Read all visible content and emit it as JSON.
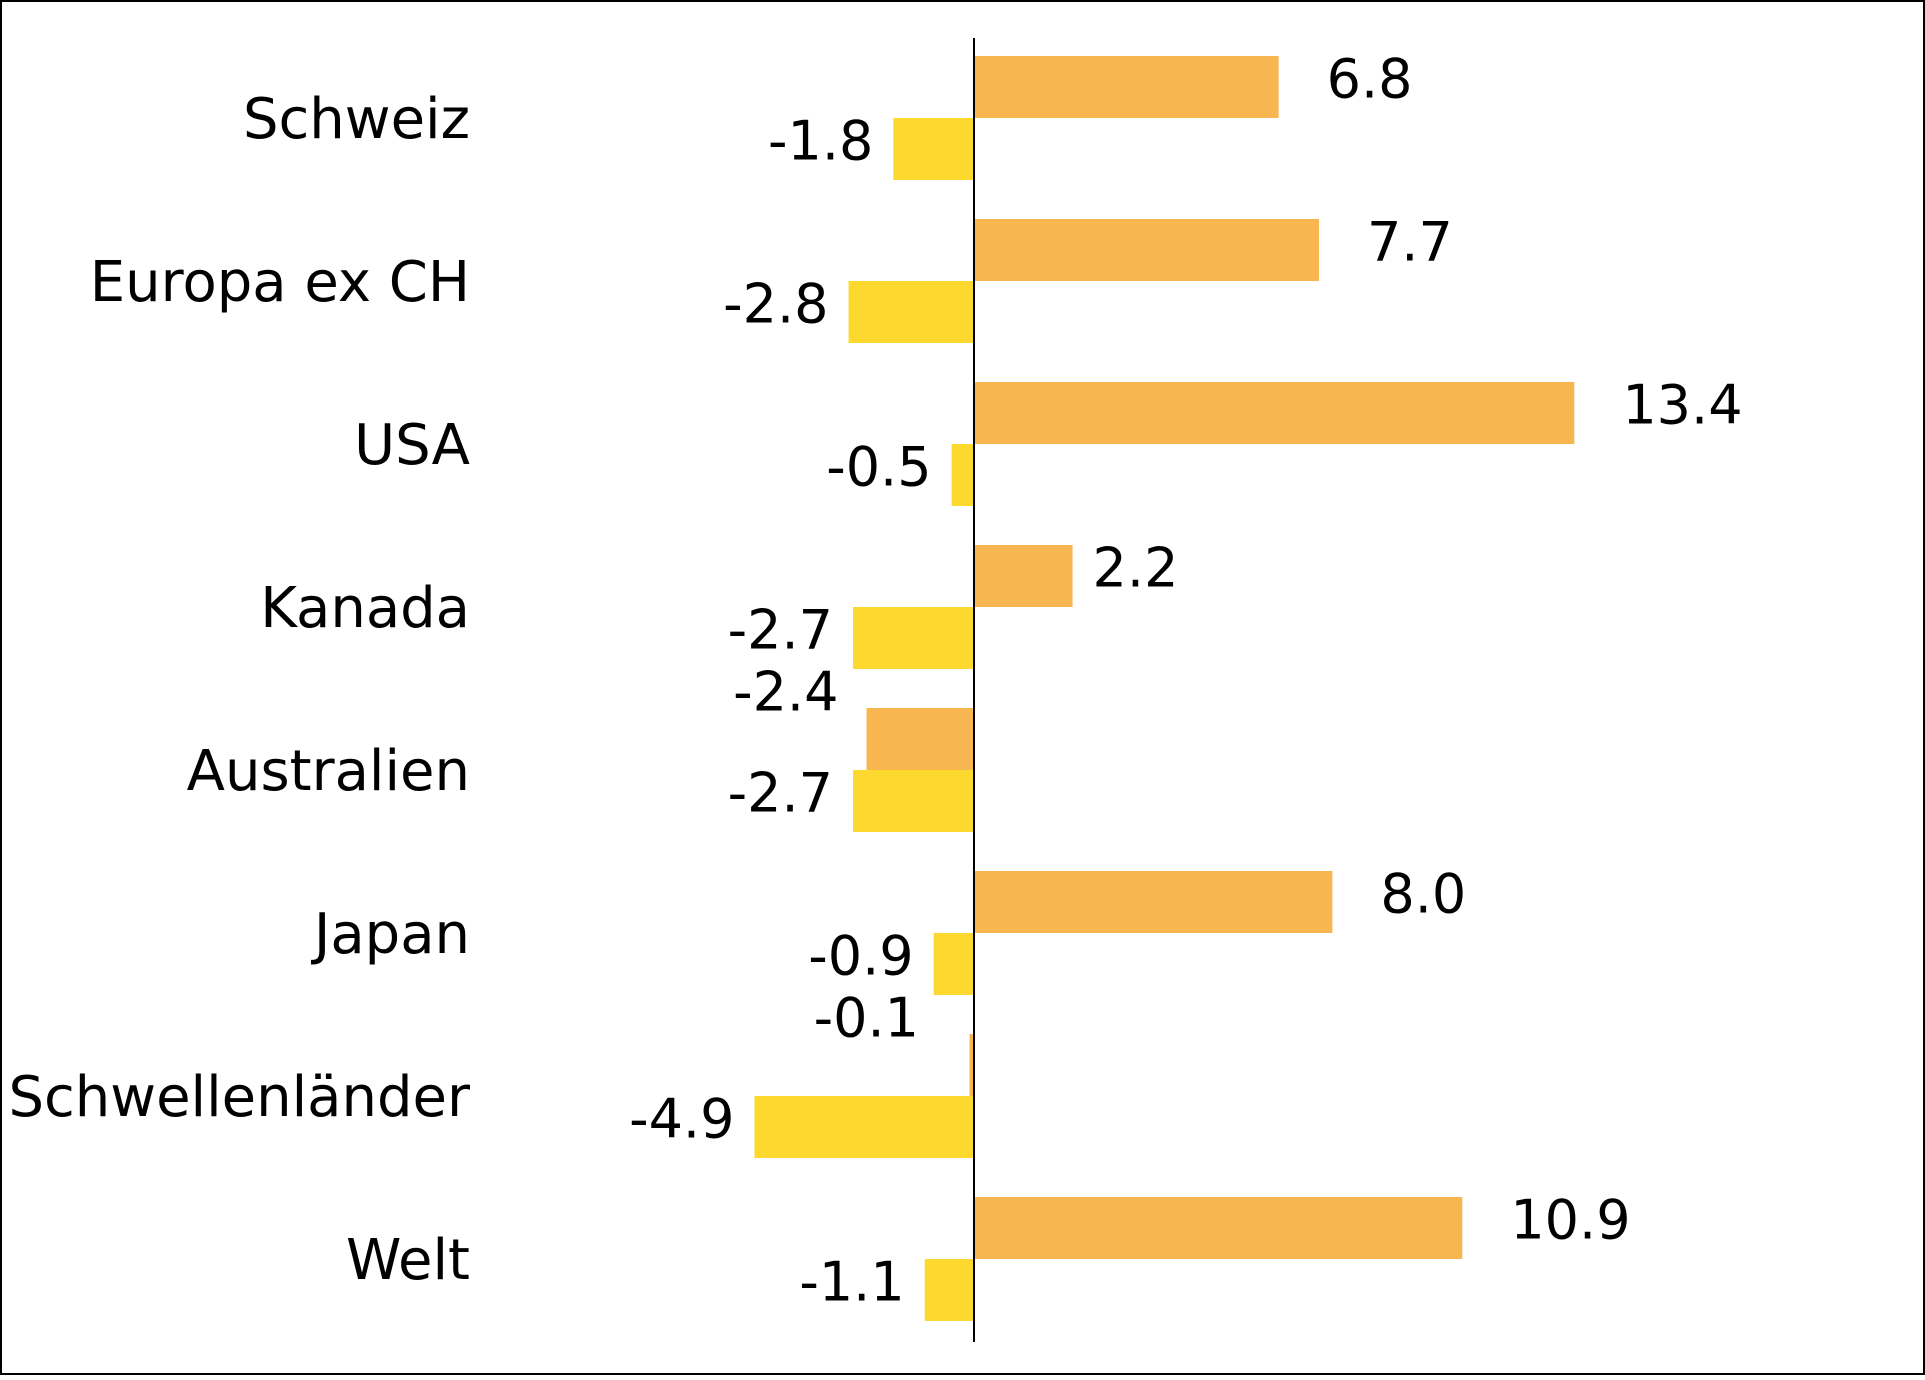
{
  "chart_data": {
    "type": "bar",
    "orientation": "horizontal",
    "categories": [
      "Schweiz",
      "Europa ex CH",
      "USA",
      "Kanada",
      "Australien",
      "Japan",
      "Schwellenländer",
      "Welt"
    ],
    "series": [
      {
        "values": [
          6.8,
          7.7,
          13.4,
          2.2,
          -2.4,
          8.0,
          -0.1,
          10.9
        ],
        "labels": [
          "6.8",
          "7.7",
          "13.4",
          "2.2",
          "-2.4",
          "8.0",
          "-0.1",
          "10.9"
        ],
        "color": "#F8B650"
      },
      {
        "values": [
          -1.8,
          -2.8,
          -0.5,
          -2.7,
          -2.7,
          -0.9,
          -4.9,
          -1.1
        ],
        "labels": [
          "-1.8",
          "-2.8",
          "-0.5",
          "-2.7",
          "-2.7",
          "-0.9",
          "-4.9",
          "-1.1"
        ],
        "color": "#FDD92F"
      }
    ],
    "title": "",
    "xlabel": "",
    "ylabel": "",
    "grid": false,
    "legend": "none"
  }
}
